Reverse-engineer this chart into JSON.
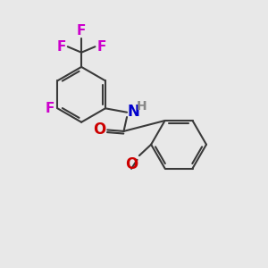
{
  "bg_color": "#e8e8e8",
  "bond_color": "#3a3a3a",
  "bond_width": 1.5,
  "F_color": "#cc00cc",
  "N_color": "#0000cc",
  "O_color": "#cc0000",
  "H_color": "#888888",
  "font_size": 10,
  "figsize": [
    3.0,
    3.0
  ],
  "dpi": 100,
  "xlim": [
    0,
    10
  ],
  "ylim": [
    0,
    10
  ]
}
